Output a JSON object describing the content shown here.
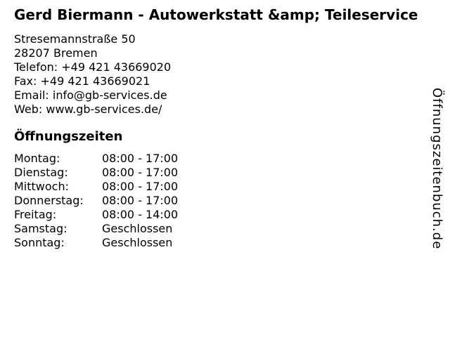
{
  "page": {
    "background_color": "#ffffff",
    "text_color": "#000000"
  },
  "business": {
    "title": "Gerd Biermann - Autowerkstatt &amp; Teileservice",
    "address_lines": [
      "Stresemannstraße 50",
      "28207 Bremen",
      "Telefon: +49 421 43669020",
      "Fax: +49 421 43669021",
      "Email: info@gb-services.de",
      "Web: www.gb-services.de/"
    ]
  },
  "opening_hours": {
    "heading": "Öffnungszeiten",
    "rows": [
      {
        "day": "Montag:",
        "hours": "08:00 - 17:00"
      },
      {
        "day": "Dienstag:",
        "hours": "08:00 - 17:00"
      },
      {
        "day": "Mittwoch:",
        "hours": "08:00 - 17:00"
      },
      {
        "day": "Donnerstag:",
        "hours": "08:00 - 17:00"
      },
      {
        "day": "Freitag:",
        "hours": "08:00 - 14:00"
      },
      {
        "day": "Samstag:",
        "hours": "Geschlossen"
      },
      {
        "day": "Sonntag:",
        "hours": "Geschlossen"
      }
    ]
  },
  "watermark": {
    "label": "Öffnungszeitenbuch.de"
  }
}
